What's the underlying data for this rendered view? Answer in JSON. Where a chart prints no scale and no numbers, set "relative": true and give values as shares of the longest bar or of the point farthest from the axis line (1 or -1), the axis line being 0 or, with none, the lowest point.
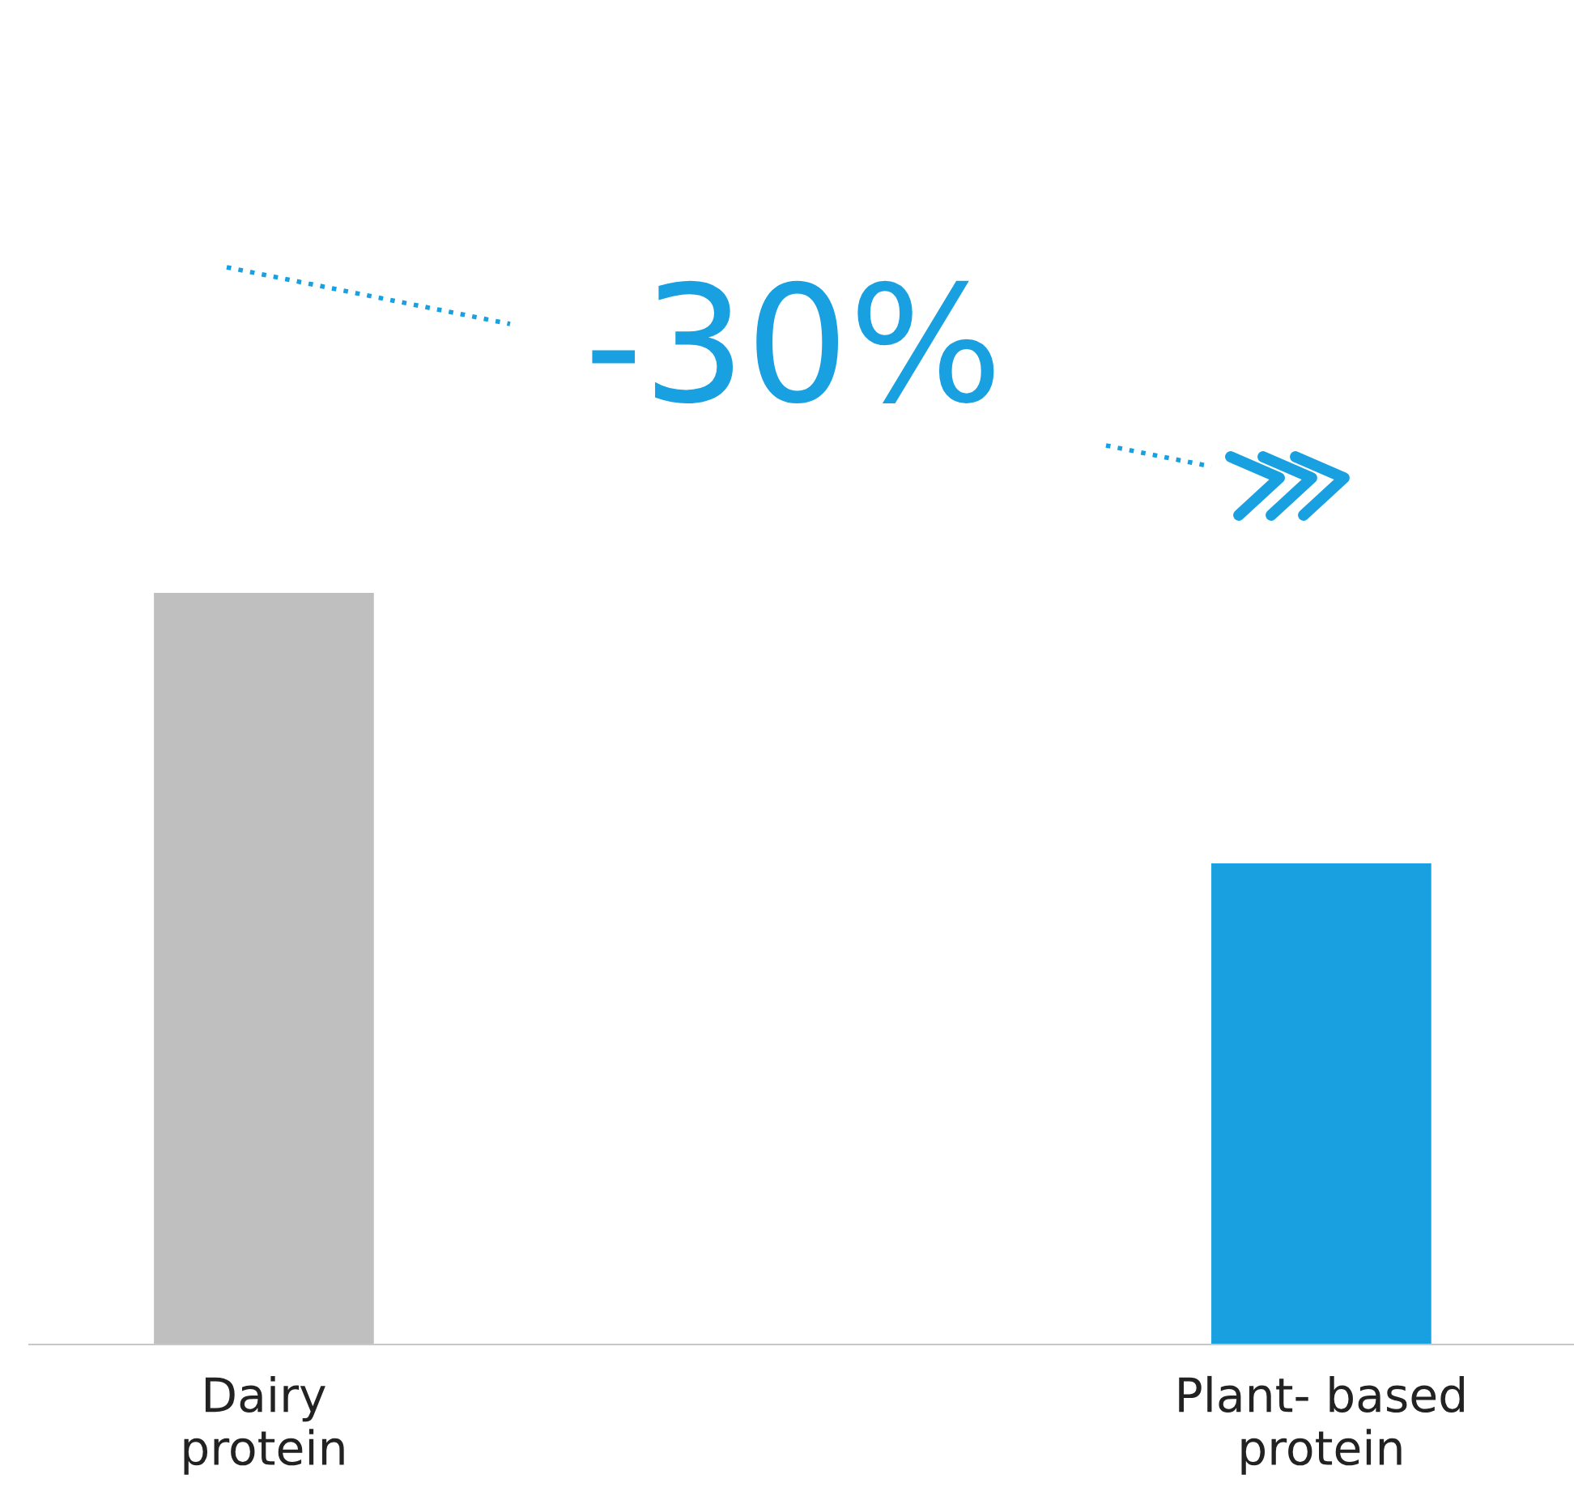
{
  "chart_data": {
    "type": "bar",
    "relative": true,
    "categories": [
      "Dairy\nprotein",
      "Plant- based\nprotein"
    ],
    "values": [
      1,
      0.64
    ],
    "colors": [
      "#bfbfbf",
      "#18a0e0"
    ],
    "annotations": [
      "-30%"
    ],
    "grid": false,
    "legend": false
  }
}
